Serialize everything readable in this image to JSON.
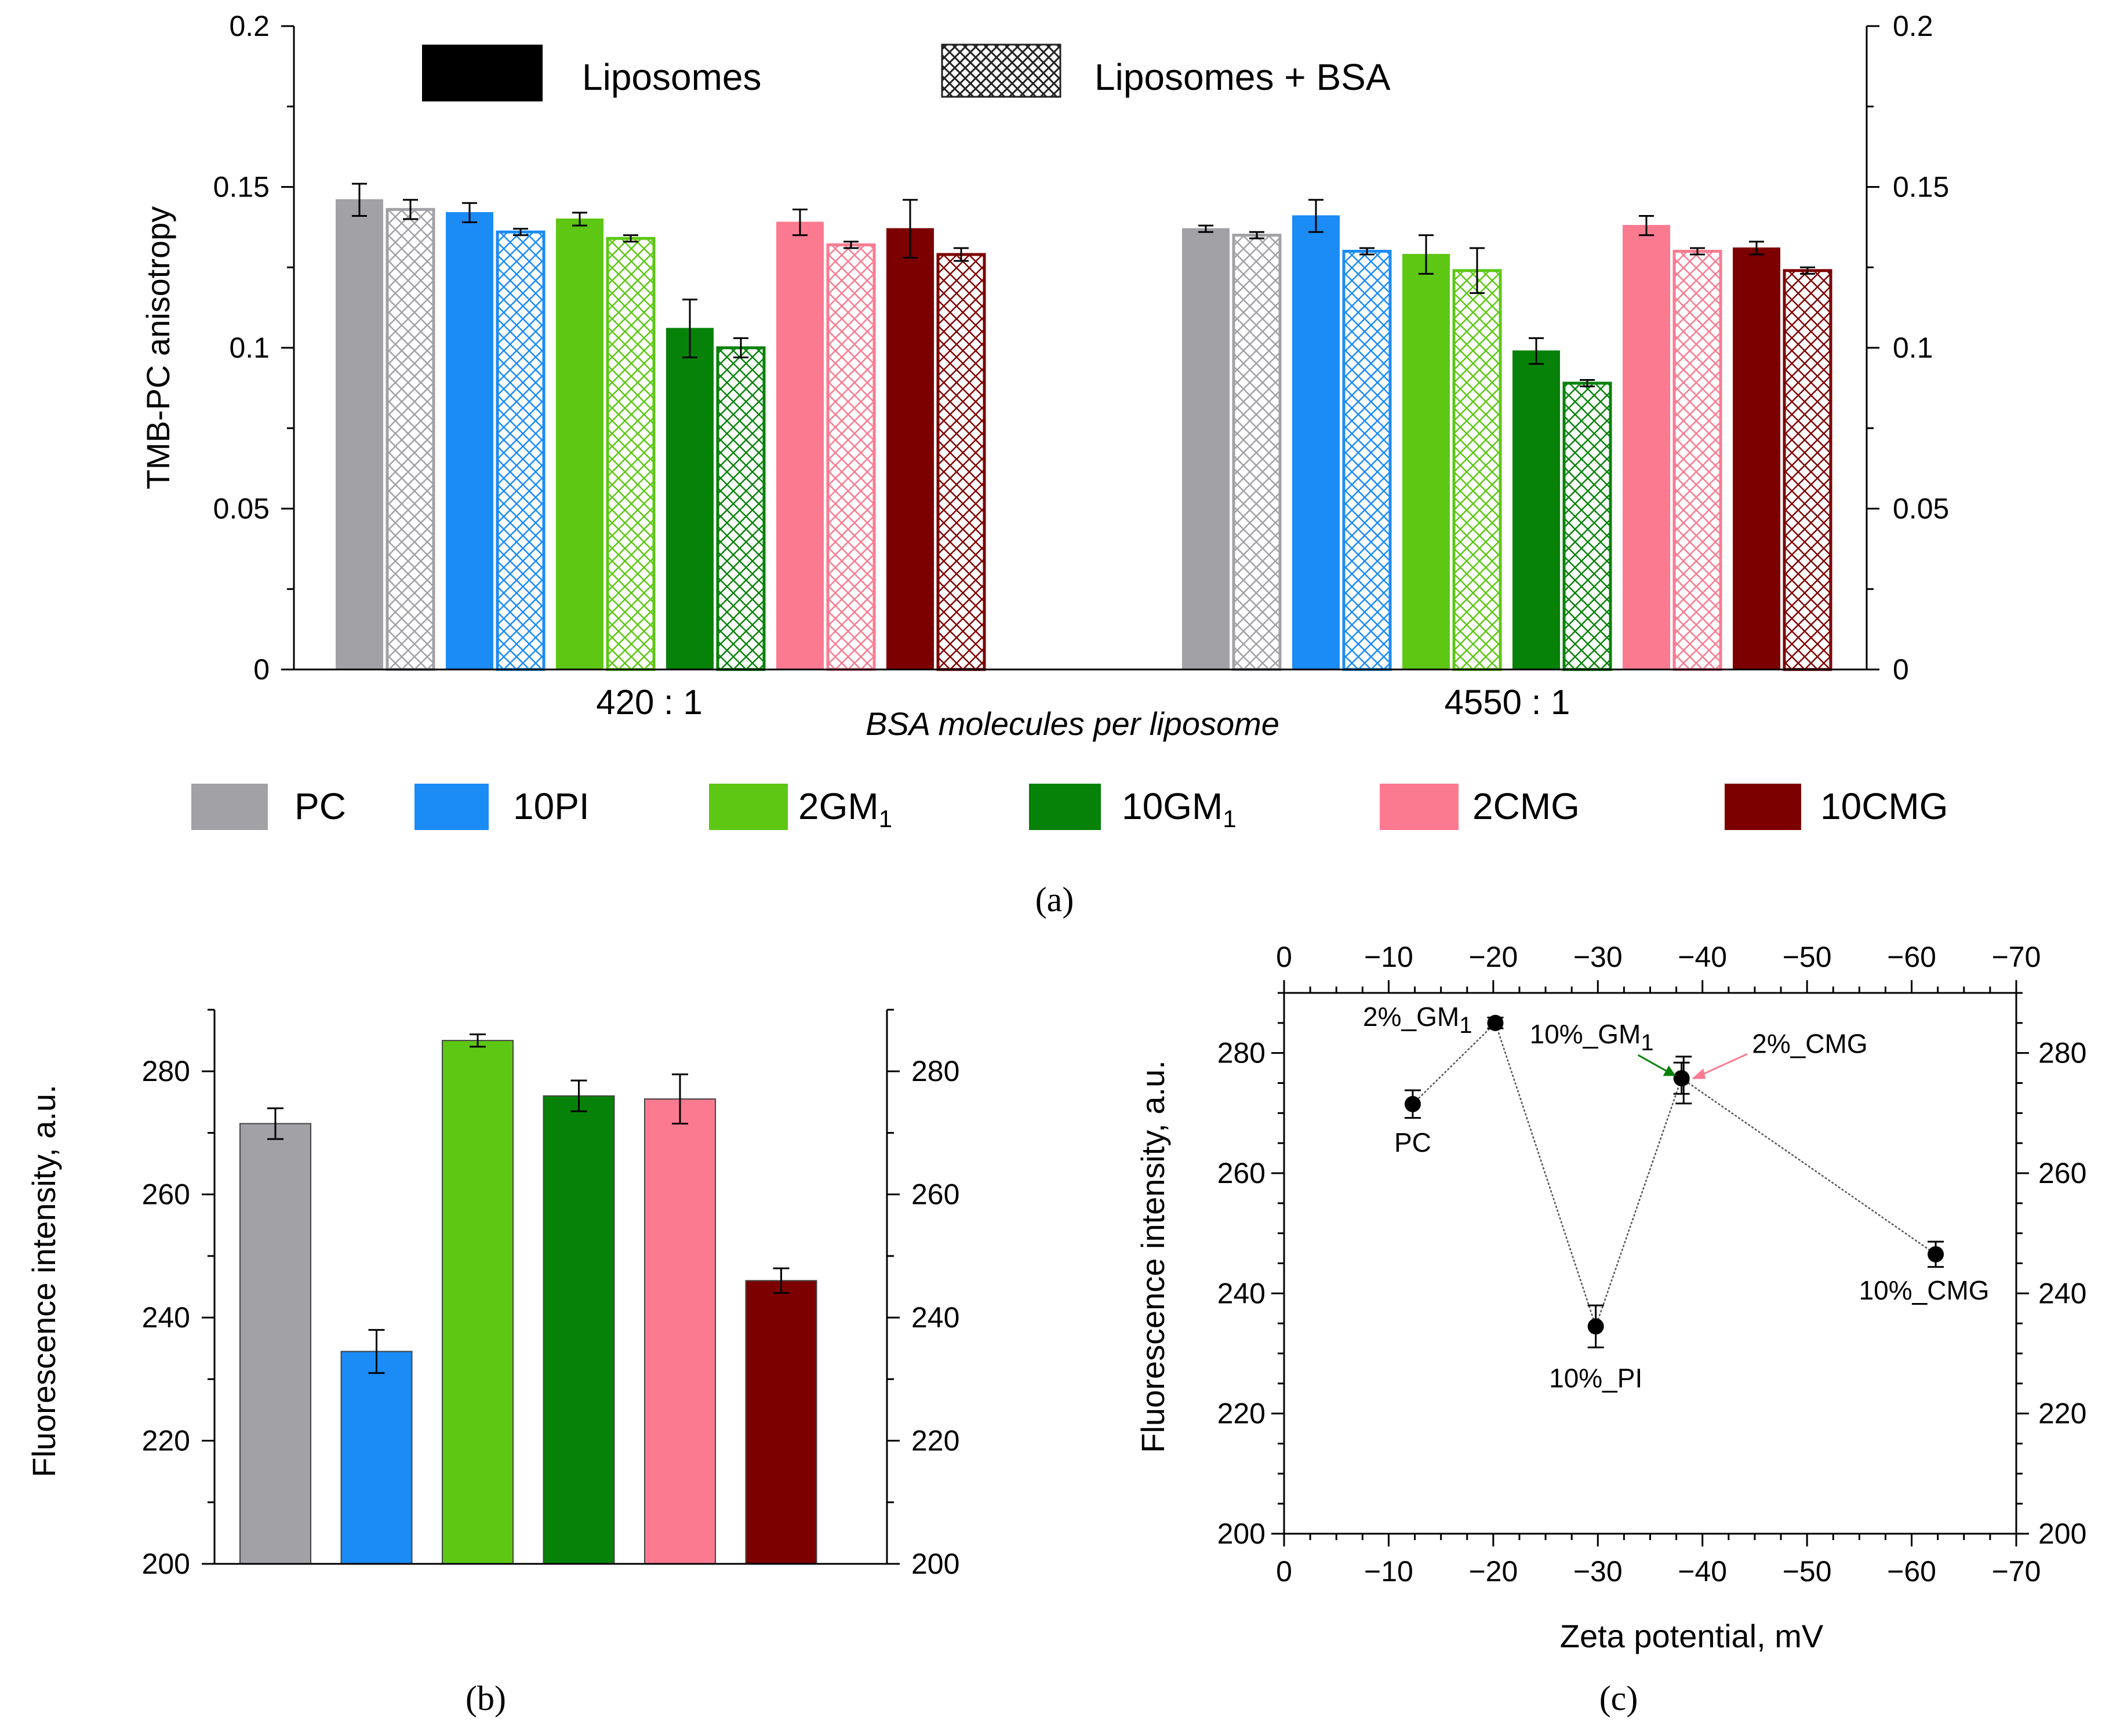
{
  "chart_data": [
    {
      "panel": "a",
      "type": "bar",
      "panel_label": "(a)",
      "ylabel": "TMB-PC anisotropy",
      "xlabel": "BSA molecules per liposome",
      "ylim": [
        0,
        0.2
      ],
      "yticks": [
        0,
        0.05,
        0.1,
        0.15,
        0.2
      ],
      "ytick_labels": [
        "0",
        "0.05",
        "0.1",
        "0.15",
        "0.2"
      ],
      "groups": [
        "420 : 1",
        "4550 : 1"
      ],
      "treatment_legend": [
        "Liposomes",
        "Liposomes + BSA"
      ],
      "categories": [
        "PC",
        "10PI",
        "2GM1",
        "10GM1",
        "2CMG",
        "10CMG"
      ],
      "category_legend": [
        {
          "label": "PC",
          "sub": ""
        },
        {
          "label": "10PI",
          "sub": ""
        },
        {
          "label": "2GM",
          "sub": "1"
        },
        {
          "label": "10GM",
          "sub": "1"
        },
        {
          "label": "2CMG",
          "sub": ""
        },
        {
          "label": "10CMG",
          "sub": ""
        }
      ],
      "colors": [
        "#a2a1a6",
        "#1b8bf5",
        "#5dc714",
        "#078209",
        "#fb7a90",
        "#7d0000"
      ],
      "series": [
        {
          "name": "Liposomes",
          "group": "420 : 1",
          "values": [
            0.146,
            0.142,
            0.14,
            0.106,
            0.139,
            0.137
          ],
          "errors": [
            0.005,
            0.003,
            0.002,
            0.009,
            0.004,
            0.009
          ]
        },
        {
          "name": "Liposomes + BSA",
          "group": "420 : 1",
          "values": [
            0.143,
            0.136,
            0.134,
            0.1,
            0.132,
            0.129
          ],
          "errors": [
            0.003,
            0.001,
            0.001,
            0.003,
            0.001,
            0.002
          ]
        },
        {
          "name": "Liposomes",
          "group": "4550 : 1",
          "values": [
            0.137,
            0.141,
            0.129,
            0.099,
            0.138,
            0.131
          ],
          "errors": [
            0.001,
            0.005,
            0.006,
            0.004,
            0.003,
            0.002
          ]
        },
        {
          "name": "Liposomes + BSA",
          "group": "4550 : 1",
          "values": [
            0.135,
            0.13,
            0.124,
            0.089,
            0.13,
            0.124
          ],
          "errors": [
            0.001,
            0.001,
            0.007,
            0.001,
            0.001,
            0.001
          ]
        }
      ]
    },
    {
      "panel": "b",
      "type": "bar",
      "panel_label": "(b)",
      "ylabel": "Fluorescence intensity, a.u.",
      "ylim": [
        200,
        290
      ],
      "yticks": [
        200,
        220,
        240,
        260,
        280
      ],
      "categories": [
        "PC",
        "10PI",
        "2GM1",
        "10GM1",
        "2CMG",
        "10CMG"
      ],
      "colors": [
        "#a2a1a6",
        "#1b8bf5",
        "#5dc714",
        "#078209",
        "#fb7a90",
        "#7d0000"
      ],
      "values": [
        271.5,
        234.5,
        285,
        276,
        275.5,
        246
      ],
      "errors": [
        2.5,
        3.5,
        1,
        2.5,
        4,
        2
      ]
    },
    {
      "panel": "c",
      "type": "scatter",
      "panel_label": "(c)",
      "xlabel": "Zeta potential, mV",
      "ylabel": "Fluorescence intensity, a.u.",
      "xlim": [
        0,
        -70
      ],
      "ylim": [
        200,
        290
      ],
      "xticks": [
        0,
        -10,
        -20,
        -30,
        -40,
        -50,
        -60,
        -70
      ],
      "xtick_labels": [
        "0",
        "−10",
        "−20",
        "−30",
        "−40",
        "−50",
        "−60",
        "−70"
      ],
      "yticks": [
        200,
        220,
        240,
        260,
        280
      ],
      "points": [
        {
          "label": "PC",
          "sub": "",
          "x": -12.3,
          "y": 271.5,
          "err": 2.3
        },
        {
          "label": "2%_GM",
          "sub": "1",
          "x": -20.2,
          "y": 285.0,
          "err": 0.9
        },
        {
          "label": "10%_PI",
          "sub": "",
          "x": -29.8,
          "y": 234.5,
          "err": 3.5
        },
        {
          "label": "10%_GM",
          "sub": "1",
          "x": -38.0,
          "y": 275.8,
          "err": 2.6
        },
        {
          "label": "2%_CMG",
          "sub": "",
          "x": -38.2,
          "y": 275.5,
          "err": 3.9
        },
        {
          "label": "10%_CMG",
          "sub": "",
          "x": -62.3,
          "y": 246.5,
          "err": 2.1
        }
      ],
      "connection_order": [
        "PC",
        "2%_GM1",
        "10%_PI",
        "10%_GM1",
        "10%_CMG"
      ],
      "arrow_colors": {
        "10%_GM1": "#078209",
        "2%_CMG": "#fb7a90"
      }
    }
  ]
}
